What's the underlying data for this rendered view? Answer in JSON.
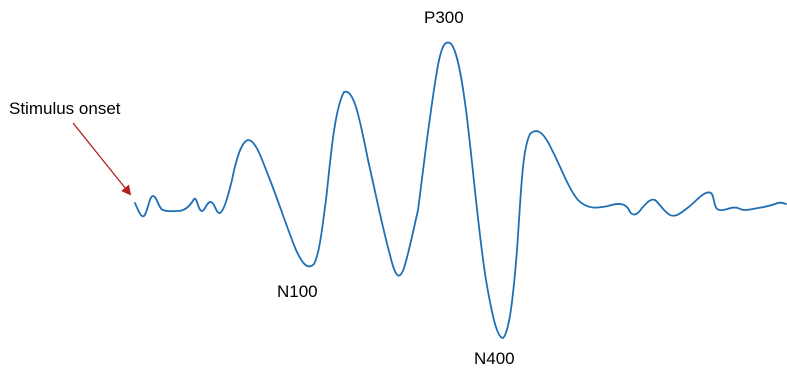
{
  "labels": {
    "stimulus_onset": "Stimulus onset",
    "p300": "P300",
    "n100": "N100",
    "n400": "N400"
  },
  "colors": {
    "waveform": "#1f6fb5",
    "arrow": "#b41f1f",
    "text": "#000000"
  }
}
